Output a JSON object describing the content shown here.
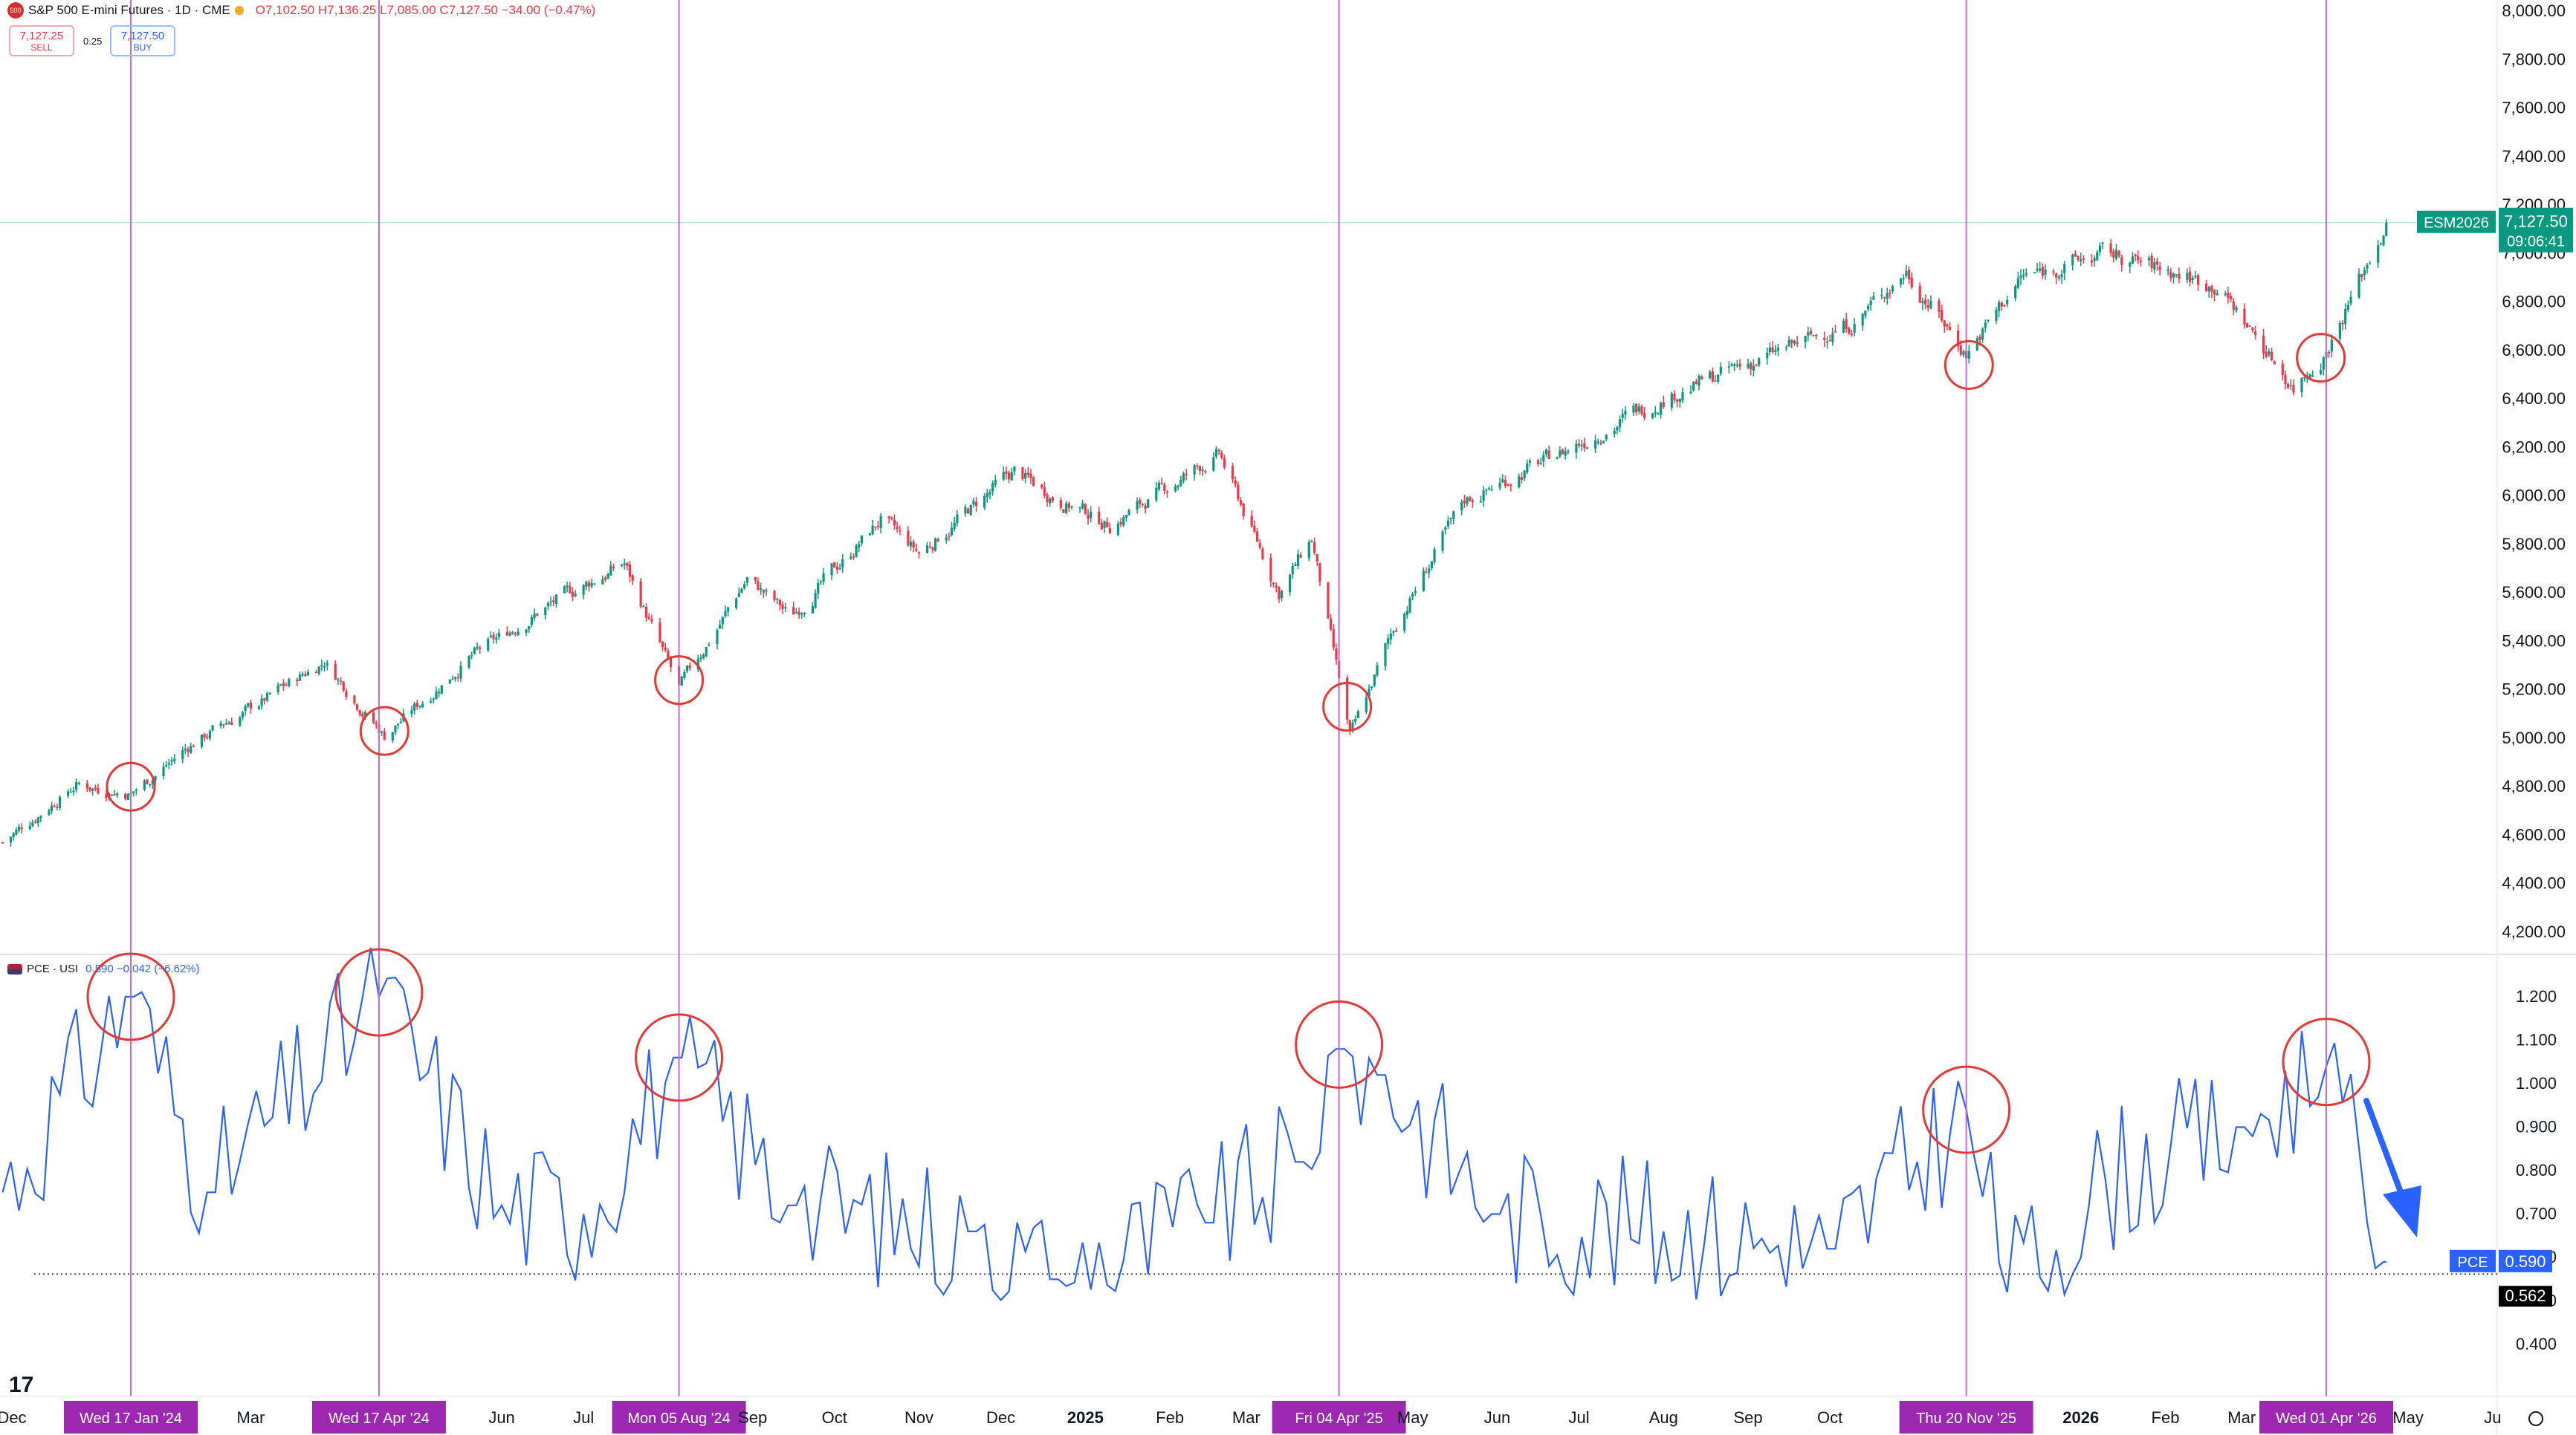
{
  "header": {
    "symbol_badge": "500",
    "title": "S&P 500 E-mini Futures · 1D · CME",
    "ohlc": "O7,102.50 H7,136.25 L7,085.00 C7,127.50 −34.00 (−0.47%)"
  },
  "trade": {
    "sell_price": "7,127.25",
    "sell_label": "SELL",
    "spread": "0.25",
    "buy_price": "7,127.50",
    "buy_label": "BUY"
  },
  "indicator": {
    "title": "PCE · USI",
    "values": "0.590 −0.042 (−6.62%)"
  },
  "price_axis": [
    "8,000.00",
    "7,800.00",
    "7,600.00",
    "7,400.00",
    "7,200.00",
    "7,000.00",
    "6,800.00",
    "6,600.00",
    "6,400.00",
    "6,200.00",
    "6,000.00",
    "5,800.00",
    "5,600.00",
    "5,400.00",
    "5,200.00",
    "5,000.00",
    "4,800.00",
    "4,600.00",
    "4,400.00",
    "4,200.00"
  ],
  "pce_axis": [
    "1.200",
    "1.100",
    "1.000",
    "0.900",
    "0.800",
    "0.700",
    "0.600",
    "0.500",
    "0.400"
  ],
  "last_price": {
    "symbol": "ESM2026",
    "price": "7,127.50",
    "countdown": "09:06:41"
  },
  "pce_last": {
    "label": "PCE",
    "value": "0.590",
    "line_value": "0.562"
  },
  "time_axis": [
    "Dec",
    "Mar",
    "Jun",
    "Jul",
    "Sep",
    "Oct",
    "Nov",
    "Dec",
    "2025",
    "Feb",
    "Mar",
    "May",
    "Jun",
    "Jul",
    "Aug",
    "Sep",
    "Oct",
    "2026",
    "Feb",
    "Mar",
    "May",
    "Ju"
  ],
  "markers": [
    {
      "label": "Wed 17 Jan '24"
    },
    {
      "label": "Wed 17 Apr '24"
    },
    {
      "label": "Mon 05 Aug '24"
    },
    {
      "label": "Fri 04 Apr '25"
    },
    {
      "label": "Thu 20 Nov '25"
    },
    {
      "label": "Wed 01 Apr '26"
    }
  ],
  "colors": {
    "up": "#089981",
    "down": "#f23645",
    "pce": "#2962ff",
    "marker_line": "#c06bd6",
    "marker_label": "#9c27b0",
    "circle": "#e53935",
    "arrow": "#2962ff"
  },
  "chart_data": [
    {
      "type": "candlestick",
      "series": [
        {
          "name": "ESM2026",
          "anchors": [
            {
              "x": "2023-12-01",
              "y": 4570
            },
            {
              "x": "2023-12-28",
              "y": 4810
            },
            {
              "x": "2024-01-17",
              "y": 4770
            },
            {
              "x": "2024-02-10",
              "y": 4990
            },
            {
              "x": "2024-03-05",
              "y": 5150
            },
            {
              "x": "2024-03-28",
              "y": 5320
            },
            {
              "x": "2024-04-19",
              "y": 5010
            },
            {
              "x": "2024-05-20",
              "y": 5330
            },
            {
              "x": "2024-06-20",
              "y": 5560
            },
            {
              "x": "2024-07-16",
              "y": 5720
            },
            {
              "x": "2024-08-05",
              "y": 5200
            },
            {
              "x": "2024-08-30",
              "y": 5660
            },
            {
              "x": "2024-09-15",
              "y": 5500
            },
            {
              "x": "2024-10-18",
              "y": 5900
            },
            {
              "x": "2024-11-01",
              "y": 5760
            },
            {
              "x": "2024-12-06",
              "y": 6100
            },
            {
              "x": "2024-12-20",
              "y": 6000
            },
            {
              "x": "2025-01-10",
              "y": 5880
            },
            {
              "x": "2025-02-19",
              "y": 6170
            },
            {
              "x": "2025-03-13",
              "y": 5600
            },
            {
              "x": "2025-03-25",
              "y": 5820
            },
            {
              "x": "2025-04-08",
              "y": 5000
            },
            {
              "x": "2025-04-24",
              "y": 5450
            },
            {
              "x": "2025-05-20",
              "y": 5980
            },
            {
              "x": "2025-06-30",
              "y": 6210
            },
            {
              "x": "2025-07-31",
              "y": 6400
            },
            {
              "x": "2025-09-05",
              "y": 6560
            },
            {
              "x": "2025-10-10",
              "y": 6720
            },
            {
              "x": "2025-10-29",
              "y": 6930
            },
            {
              "x": "2025-11-20",
              "y": 6590
            },
            {
              "x": "2025-12-10",
              "y": 6900
            },
            {
              "x": "2026-01-10",
              "y": 7000
            },
            {
              "x": "2026-02-20",
              "y": 6870
            },
            {
              "x": "2026-03-20",
              "y": 6450
            },
            {
              "x": "2026-04-01",
              "y": 6600
            },
            {
              "x": "2026-04-23",
              "y": 7127.5
            }
          ]
        }
      ],
      "y_axis": {
        "range": [
          4100,
          8050
        ],
        "ticks": [
          8000,
          7800,
          7600,
          7400,
          7200,
          7000,
          6800,
          6600,
          6400,
          6200,
          6000,
          5800,
          5600,
          5400,
          5200,
          5000,
          4800,
          4600,
          4400,
          4200
        ]
      },
      "last_value": 7127.5,
      "annotations": [
        {
          "x": "2024-01-17",
          "y": 4800
        },
        {
          "x": "2024-04-19",
          "y": 5030
        },
        {
          "x": "2024-08-05",
          "y": 5240
        },
        {
          "x": "2025-04-07",
          "y": 5130
        },
        {
          "x": "2025-11-21",
          "y": 6540
        },
        {
          "x": "2026-03-30",
          "y": 6570
        }
      ]
    },
    {
      "type": "line",
      "series": [
        {
          "name": "PCE",
          "anchors": [
            {
              "x": "2023-12-01",
              "y": 0.75
            },
            {
              "x": "2024-01-17",
              "y": 1.2
            },
            {
              "x": "2024-02-15",
              "y": 0.75
            },
            {
              "x": "2024-04-17",
              "y": 1.2
            },
            {
              "x": "2024-06-01",
              "y": 0.72
            },
            {
              "x": "2024-07-01",
              "y": 0.7
            },
            {
              "x": "2024-08-05",
              "y": 1.06
            },
            {
              "x": "2024-09-15",
              "y": 0.72
            },
            {
              "x": "2024-11-20",
              "y": 0.66
            },
            {
              "x": "2024-12-20",
              "y": 0.55
            },
            {
              "x": "2025-02-15",
              "y": 0.68
            },
            {
              "x": "2025-03-20",
              "y": 0.82
            },
            {
              "x": "2025-04-04",
              "y": 1.08
            },
            {
              "x": "2025-04-20",
              "y": 1.02
            },
            {
              "x": "2025-06-01",
              "y": 0.7
            },
            {
              "x": "2025-08-01",
              "y": 0.66
            },
            {
              "x": "2025-10-01",
              "y": 0.62
            },
            {
              "x": "2025-11-20",
              "y": 0.94
            },
            {
              "x": "2025-12-05",
              "y": 0.52
            },
            {
              "x": "2026-01-10",
              "y": 0.78
            },
            {
              "x": "2026-03-01",
              "y": 0.9
            },
            {
              "x": "2026-04-01",
              "y": 1.04
            },
            {
              "x": "2026-04-23",
              "y": 0.59
            }
          ]
        }
      ],
      "y_axis": {
        "range": [
          0.35,
          1.26
        ],
        "ticks": [
          1.2,
          1.1,
          1.0,
          0.9,
          0.8,
          0.7,
          0.6,
          0.5,
          0.4
        ]
      },
      "last_value": 0.59,
      "reference_line": 0.562,
      "annotations": [
        {
          "x": "2024-01-17",
          "y": 1.2
        },
        {
          "x": "2024-04-17",
          "y": 1.21
        },
        {
          "x": "2024-08-05",
          "y": 1.06
        },
        {
          "x": "2025-04-04",
          "y": 1.09
        },
        {
          "x": "2025-11-20",
          "y": 0.94
        },
        {
          "x": "2026-04-01",
          "y": 1.05
        }
      ]
    }
  ]
}
